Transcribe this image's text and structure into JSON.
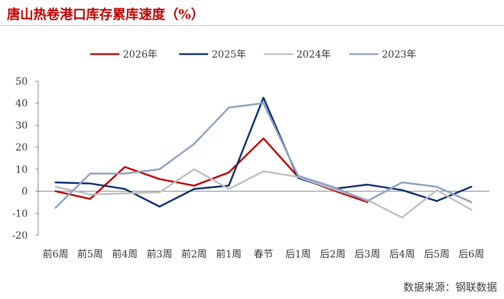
{
  "title": "唐山热卷港口库存累库速度（%）",
  "source": "数据来源：钢联数据",
  "chart_data": {
    "type": "line",
    "title": "唐山热卷港口库存累库速度（%）",
    "xlabel": "",
    "ylabel": "",
    "ylim": [
      -20,
      50
    ],
    "yticks": [
      -20,
      -10,
      0,
      10,
      20,
      30,
      40,
      50
    ],
    "grid": false,
    "legend_position": "top",
    "categories": [
      "前6周",
      "前5周",
      "前4周",
      "前3周",
      "前2周",
      "前1周",
      "春节",
      "后1周",
      "后2周",
      "后3周",
      "后4周",
      "后5周",
      "后6周"
    ],
    "series": [
      {
        "name": "2026年",
        "color": "#c00000",
        "values": [
          0,
          -3.5,
          11,
          5.5,
          2.5,
          8.5,
          24,
          6.5,
          0.5,
          -5,
          null,
          null,
          null
        ]
      },
      {
        "name": "2025年",
        "color": "#0d2f6e",
        "values": [
          4,
          3.5,
          1,
          -7,
          1,
          2.5,
          42.5,
          6,
          1,
          3,
          0.5,
          -4.5,
          2
        ]
      },
      {
        "name": "2024年",
        "color": "#bfbfbf",
        "values": [
          2,
          -1.5,
          -1,
          -0.5,
          10,
          1,
          9,
          6.5,
          1,
          -4,
          -12,
          0.5,
          -8.5
        ]
      },
      {
        "name": "2023年",
        "color": "#8ea1c6",
        "values": [
          -7.5,
          8,
          8,
          10,
          21.5,
          38,
          40,
          7,
          2,
          -4.5,
          4,
          2,
          -5
        ]
      }
    ]
  }
}
